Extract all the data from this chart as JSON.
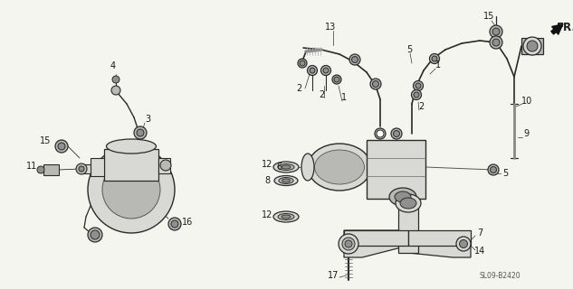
{
  "bg_color": "#f5f5f0",
  "diagram_code": "SL09-B2420",
  "fr_label": "FR.",
  "fig_width": 6.33,
  "fig_height": 3.2,
  "dpi": 100,
  "text_color": "#1a1a1a",
  "label_fontsize": 7.0,
  "diagram_code_fontsize": 5.5,
  "fr_fontsize": 8.5,
  "line_color": "#2a2a2a",
  "fill_light": "#d8d8d4",
  "fill_mid": "#b8b8b4",
  "fill_dark": "#909090"
}
